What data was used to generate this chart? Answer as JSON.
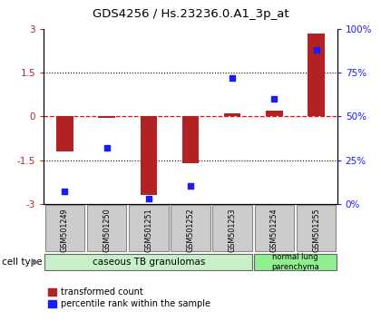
{
  "title": "GDS4256 / Hs.23236.0.A1_3p_at",
  "samples": [
    "GSM501249",
    "GSM501250",
    "GSM501251",
    "GSM501252",
    "GSM501253",
    "GSM501254",
    "GSM501255"
  ],
  "transformed_count": [
    -1.2,
    -0.05,
    -2.7,
    -1.6,
    0.1,
    0.2,
    2.85
  ],
  "percentile_rank": [
    7,
    32,
    3,
    10,
    72,
    60,
    88
  ],
  "ylim_left": [
    -3,
    3
  ],
  "ylim_right": [
    0,
    100
  ],
  "yticks_left": [
    -3,
    -1.5,
    0,
    1.5,
    3
  ],
  "yticks_right": [
    0,
    25,
    50,
    75,
    100
  ],
  "ytick_labels_left": [
    "-3",
    "-1.5",
    "0",
    "1.5",
    "3"
  ],
  "ytick_labels_right": [
    "0%",
    "25%",
    "50%",
    "75%",
    "100%"
  ],
  "hlines": [
    -1.5,
    0,
    1.5
  ],
  "hline_styles": [
    "dotted",
    "dashed",
    "dotted"
  ],
  "hline_colors": [
    "black",
    "red",
    "black"
  ],
  "bar_color": "#b22222",
  "dot_color": "#1a1aff",
  "bar_width": 0.4,
  "group0_label": "caseous TB granulomas",
  "group0_color": "#c8f0c8",
  "group0_count": 5,
  "group1_label": "normal lung\nparenchyma",
  "group1_color": "#90ee90",
  "group1_count": 2,
  "legend_bar_label": "transformed count",
  "legend_dot_label": "percentile rank within the sample",
  "cell_type_label": "cell type",
  "sample_box_color": "#cccccc",
  "plot_bg": "#ffffff"
}
